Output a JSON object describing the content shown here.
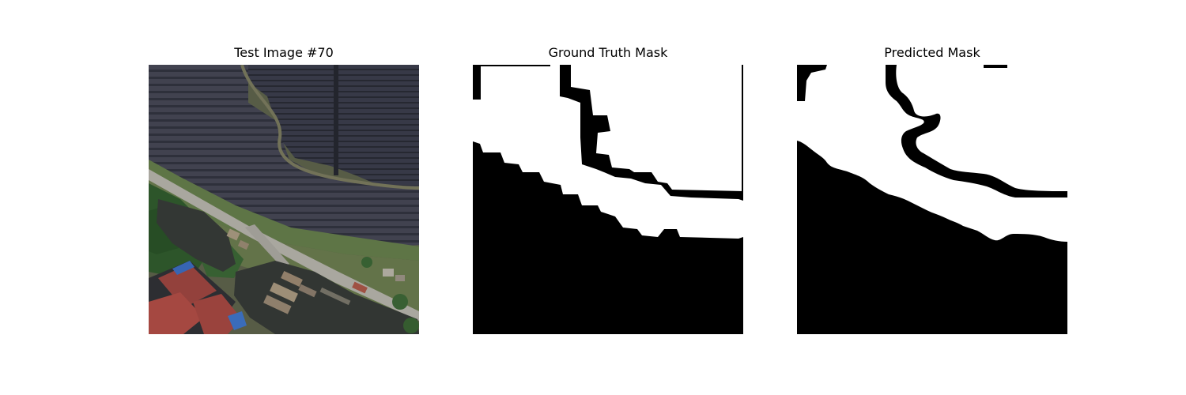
{
  "figure": {
    "panels": [
      {
        "title": "Test Image #70"
      },
      {
        "title": "Ground Truth Mask"
      },
      {
        "title": "Predicted Mask"
      }
    ]
  },
  "colors": {
    "background": "#ffffff",
    "mask_foreground": "#ffffff",
    "mask_background": "#000000",
    "solar_panels": "#363847",
    "vegetation": "#2f5a2a",
    "water": "#2b2f2c",
    "red_roof": "#8f3a35",
    "road": "#9c9a92"
  }
}
